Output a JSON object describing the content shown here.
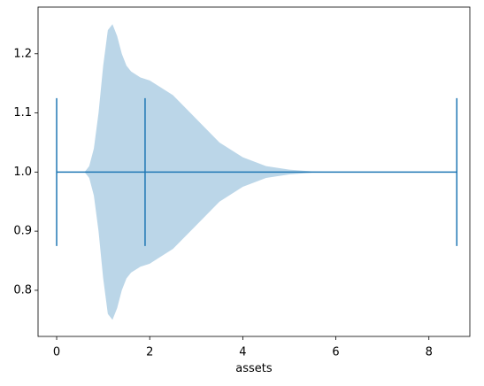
{
  "chart_data": {
    "type": "violin",
    "orientation": "horizontal",
    "xlabel": "assets",
    "position": 1,
    "density": {
      "x": [
        0.6,
        0.7,
        0.8,
        0.9,
        1.0,
        1.05,
        1.1,
        1.2,
        1.3,
        1.4,
        1.5,
        1.6,
        1.8,
        2.0,
        2.2,
        2.5,
        3.0,
        3.5,
        4.0,
        4.5,
        5.0,
        5.5,
        6.0,
        7.0,
        8.6
      ],
      "halfwidth": [
        0,
        0.01,
        0.04,
        0.1,
        0.18,
        0.21,
        0.24,
        0.25,
        0.23,
        0.2,
        0.18,
        0.17,
        0.16,
        0.155,
        0.145,
        0.13,
        0.09,
        0.05,
        0.025,
        0.01,
        0.004,
        0.001,
        0,
        0,
        0
      ]
    },
    "min": 0,
    "max": 8.6,
    "median": 1.9,
    "cap_halfwidth": 0.125,
    "color": "#1f77b4",
    "fill_opacity": 0.3,
    "xlim": [
      -0.4,
      8.88
    ],
    "ylim": [
      0.722,
      1.279
    ],
    "xticks": [
      0,
      2,
      4,
      6,
      8
    ],
    "yticks": [
      0.8,
      0.9,
      {
        "value": 1,
        "label": "1.0"
      },
      1.1,
      1.2
    ]
  }
}
